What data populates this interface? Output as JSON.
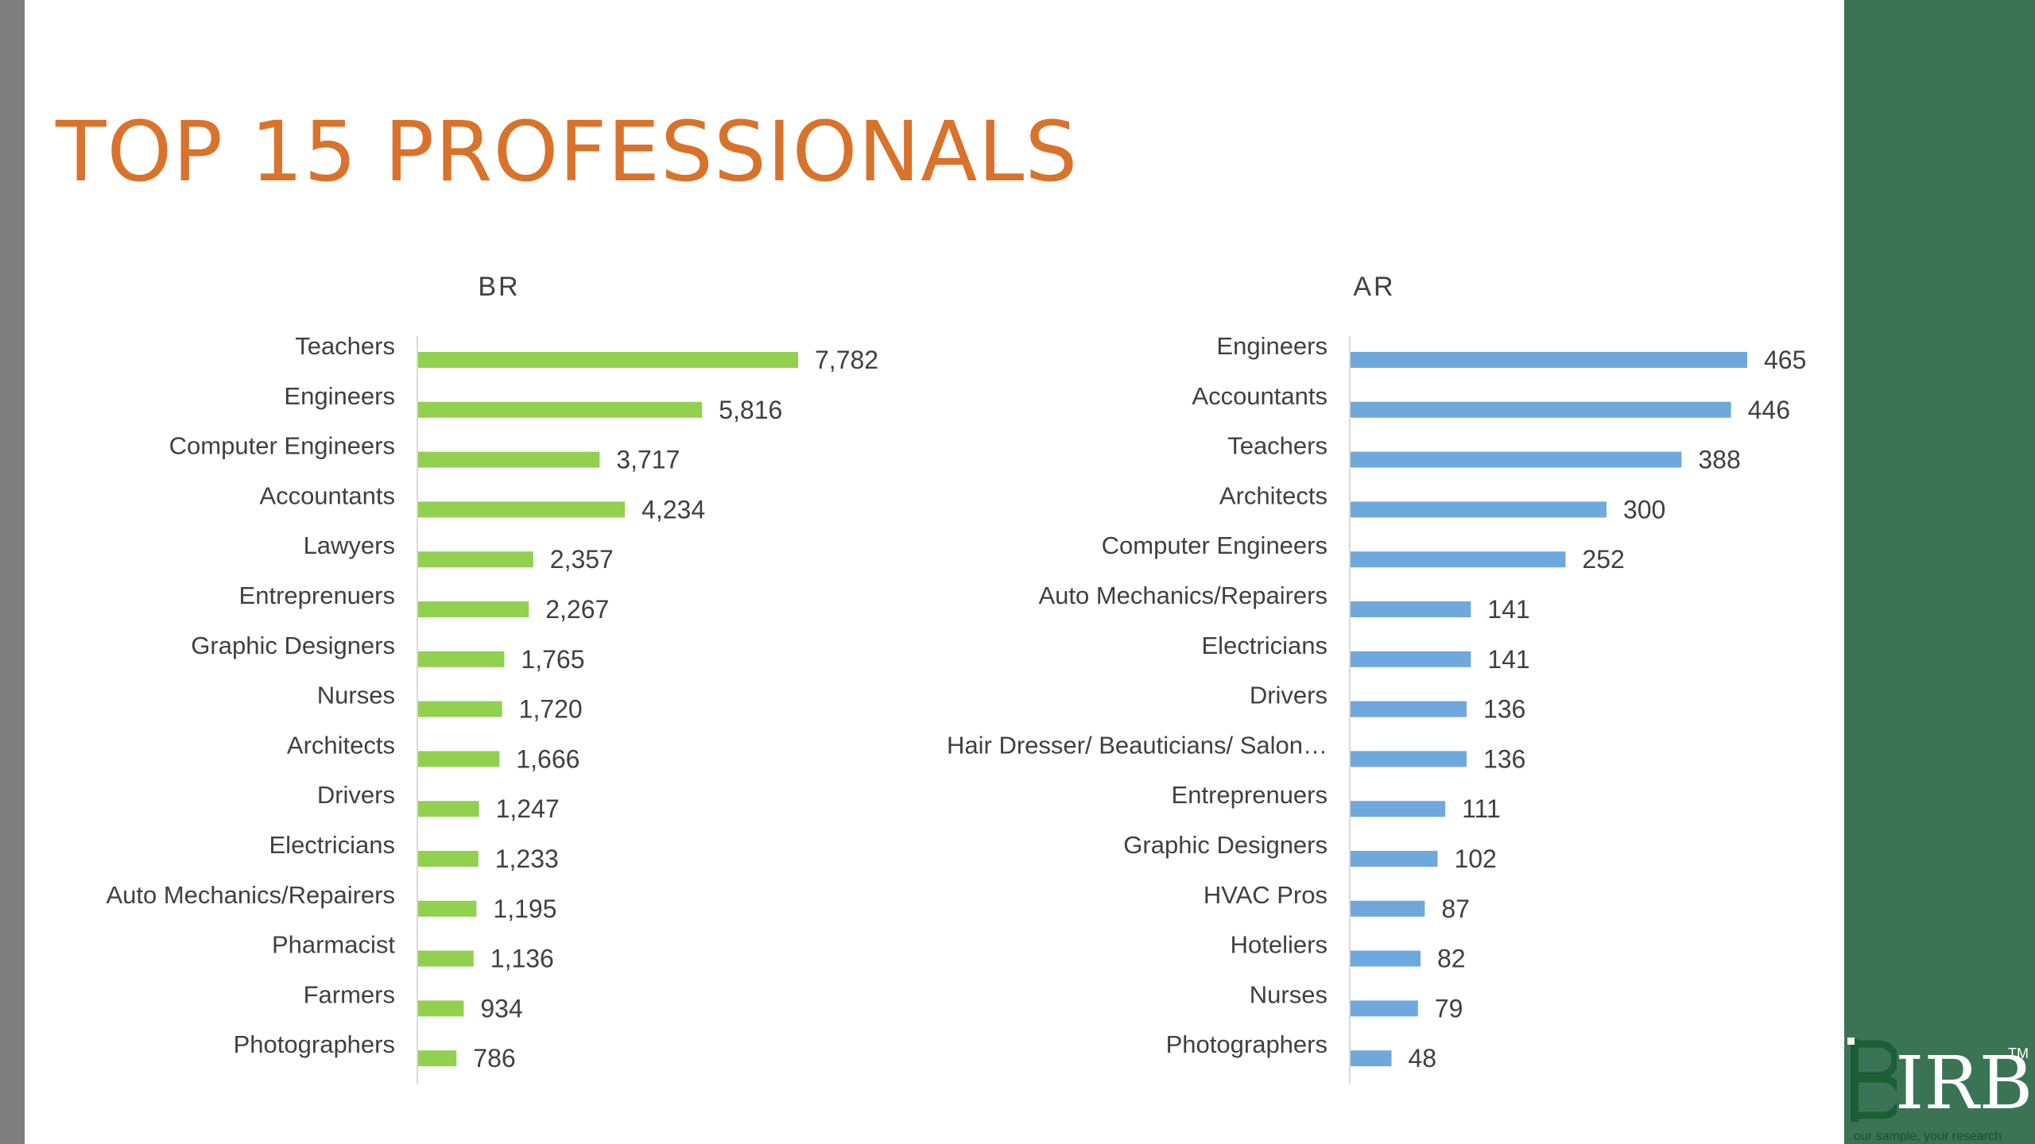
{
  "slide": {
    "title": "TOP 15 PROFESSIONALS",
    "logo": {
      "name": "IRB",
      "tm": "TM",
      "tagline": "our sample, your research",
      "mark_icon": "irb-logo-icon"
    },
    "colors": {
      "title": "#d9722b",
      "br_bar": "#92d050",
      "ar_bar": "#6fa8dc",
      "side_panel": "#3a7455",
      "left_strip": "#7f7f7f",
      "text": "#404040"
    }
  },
  "chart_data": [
    {
      "type": "bar",
      "orientation": "horizontal",
      "title": "BR",
      "categories": [
        "Teachers",
        "Engineers",
        "Computer Engineers",
        "Accountants",
        "Lawyers",
        "Entreprenuers",
        "Graphic Designers",
        "Nurses",
        "Architects",
        "Drivers",
        "Electricians",
        "Auto Mechanics/Repairers",
        "Pharmacist",
        "Farmers",
        "Photographers"
      ],
      "values": [
        7782,
        5816,
        3717,
        4234,
        2357,
        2267,
        1765,
        1720,
        1666,
        1247,
        1233,
        1195,
        1136,
        934,
        786
      ],
      "value_labels": [
        "7,782",
        "5,816",
        "3,717",
        "4,234",
        "2,357",
        "2,267",
        "1,765",
        "1,720",
        "1,666",
        "1,247",
        "1,233",
        "1,195",
        "1,136",
        "934",
        "786"
      ],
      "xlim": [
        0,
        7782
      ],
      "grid": false,
      "legend": "none",
      "color": "#92d050"
    },
    {
      "type": "bar",
      "orientation": "horizontal",
      "title": "AR",
      "categories": [
        "Engineers",
        "Accountants",
        "Teachers",
        "Architects",
        "Computer Engineers",
        "Auto Mechanics/Repairers",
        "Electricians",
        "Drivers",
        "Hair Dresser/ Beauticians/ Salon…",
        "Entreprenuers",
        "Graphic Designers",
        "HVAC Pros",
        "Hoteliers",
        "Nurses",
        "Photographers"
      ],
      "values": [
        465,
        446,
        388,
        300,
        252,
        141,
        141,
        136,
        136,
        111,
        102,
        87,
        82,
        79,
        48
      ],
      "value_labels": [
        "465",
        "446",
        "388",
        "300",
        "252",
        "141",
        "141",
        "136",
        "136",
        "111",
        "102",
        "87",
        "82",
        "79",
        "48"
      ],
      "xlim": [
        0,
        465
      ],
      "grid": false,
      "legend": "none",
      "color": "#6fa8dc"
    }
  ]
}
